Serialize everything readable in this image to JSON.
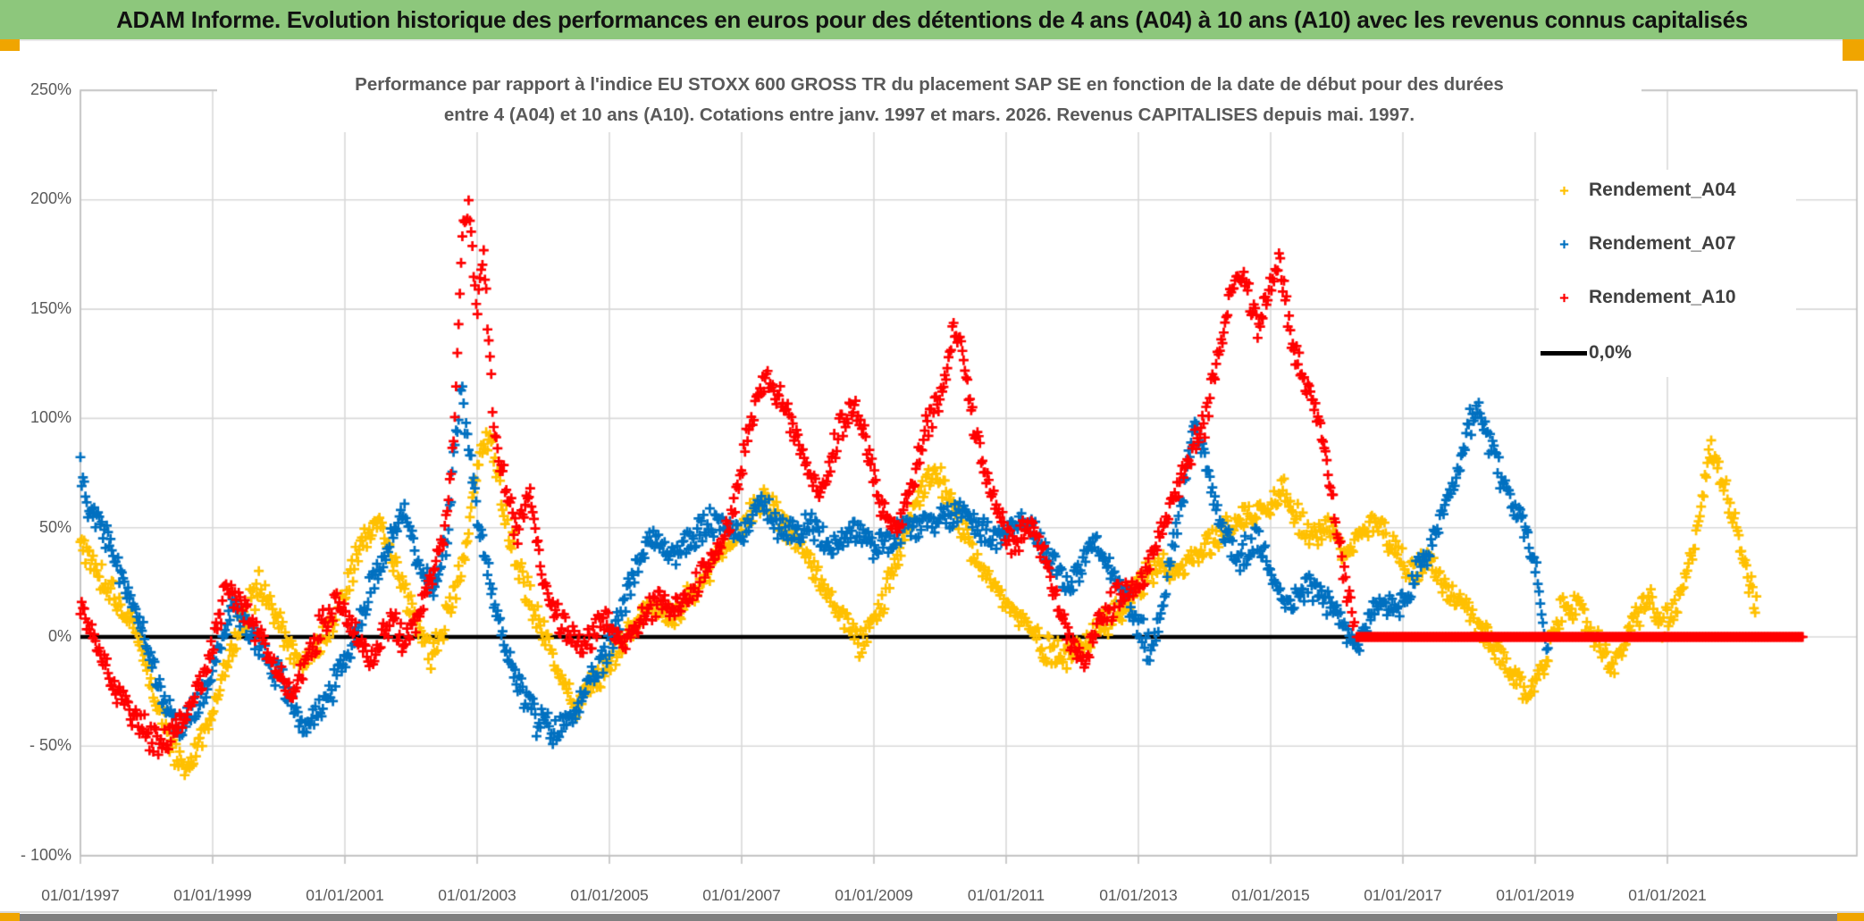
{
  "header": {
    "title": "ADAM Informe. Evolution historique des performances en euros pour des détentions de 4 ans (A04) à 10 ans (A10) avec les revenus connus capitalisés",
    "bg_color": "#8DC77C",
    "accent_color": "#F0A500"
  },
  "chart_data": {
    "type": "scatter",
    "title_line1": "Performance par rapport à l'indice EU STOXX 600 GROSS TR  du placement SAP SE en fonction de la date de début pour des durées",
    "title_line2": "entre 4 (A04) et 10 ans (A10). Cotations entre janv. 1997 et mars. 2026. Revenus CAPITALISES depuis mai. 1997.",
    "grid": true,
    "legend_position": "top-right",
    "x_axis": {
      "type": "date",
      "tick_labels": [
        "01/01/1997",
        "01/01/1999",
        "01/01/2001",
        "01/01/2003",
        "01/01/2005",
        "01/01/2007",
        "01/01/2009",
        "01/01/2011",
        "01/01/2013",
        "01/01/2015",
        "01/01/2017",
        "01/01/2019",
        "01/01/2021"
      ],
      "start_year": 1997,
      "end_year": 2023.9,
      "tick_step_years": 2
    },
    "y_axis": {
      "tick_labels": [
        "250%",
        "200%",
        "150%",
        "100%",
        "50%",
        "0%",
        "- 50%",
        "- 100%"
      ],
      "tick_values": [
        250,
        200,
        150,
        100,
        50,
        0,
        -50,
        -100
      ],
      "min": -100,
      "max": 250,
      "step": 50,
      "unit": "%"
    },
    "legend": [
      {
        "label": "Rendement_A04",
        "marker": "plus",
        "color": "#FFC000"
      },
      {
        "label": "Rendement_A07",
        "marker": "plus",
        "color": "#0070C0"
      },
      {
        "label": "Rendement_A10",
        "marker": "plus",
        "color": "#FF0000"
      },
      {
        "label": "0,0%",
        "marker": "line",
        "color": "#000000"
      }
    ],
    "zero_line": {
      "value": 0,
      "color": "#000000",
      "start_year": 1997.0,
      "end_year": 2023.05
    },
    "series": [
      {
        "name": "Rendement_A04",
        "color": "#FFC000",
        "marker": "plus",
        "seed": 11,
        "anchors": [
          [
            1997.0,
            42
          ],
          [
            1997.2,
            33
          ],
          [
            1997.5,
            20
          ],
          [
            1997.8,
            4
          ],
          [
            1998.0,
            -14
          ],
          [
            1998.3,
            -42
          ],
          [
            1998.55,
            -62
          ],
          [
            1998.7,
            -55
          ],
          [
            1999.0,
            -34
          ],
          [
            1999.2,
            -14
          ],
          [
            1999.45,
            6
          ],
          [
            1999.7,
            24
          ],
          [
            2000.0,
            6
          ],
          [
            2000.3,
            -14
          ],
          [
            2000.6,
            -4
          ],
          [
            2000.9,
            14
          ],
          [
            2001.2,
            38
          ],
          [
            2001.5,
            54
          ],
          [
            2001.8,
            30
          ],
          [
            2002.0,
            12
          ],
          [
            2002.3,
            -8
          ],
          [
            2002.6,
            14
          ],
          [
            2002.85,
            45
          ],
          [
            2003.05,
            85
          ],
          [
            2003.2,
            93
          ],
          [
            2003.4,
            60
          ],
          [
            2003.6,
            34
          ],
          [
            2003.9,
            10
          ],
          [
            2004.2,
            -14
          ],
          [
            2004.5,
            -31
          ],
          [
            2004.8,
            -20
          ],
          [
            2005.0,
            -10
          ],
          [
            2005.3,
            4
          ],
          [
            2005.6,
            14
          ],
          [
            2006.0,
            8
          ],
          [
            2006.3,
            20
          ],
          [
            2006.6,
            34
          ],
          [
            2007.0,
            50
          ],
          [
            2007.3,
            64
          ],
          [
            2007.6,
            54
          ],
          [
            2007.9,
            40
          ],
          [
            2008.2,
            25
          ],
          [
            2008.5,
            10
          ],
          [
            2008.8,
            -4
          ],
          [
            2009.0,
            6
          ],
          [
            2009.3,
            30
          ],
          [
            2009.6,
            58
          ],
          [
            2009.9,
            76
          ],
          [
            2010.2,
            60
          ],
          [
            2010.5,
            40
          ],
          [
            2010.8,
            25
          ],
          [
            2011.0,
            15
          ],
          [
            2011.3,
            5
          ],
          [
            2011.6,
            -5
          ],
          [
            2012.0,
            -8
          ],
          [
            2012.4,
            4
          ],
          [
            2012.8,
            15
          ],
          [
            2013.0,
            24
          ],
          [
            2013.3,
            34
          ],
          [
            2013.6,
            30
          ],
          [
            2014.0,
            40
          ],
          [
            2014.3,
            50
          ],
          [
            2014.6,
            55
          ],
          [
            2015.0,
            60
          ],
          [
            2015.2,
            70
          ],
          [
            2015.4,
            55
          ],
          [
            2015.6,
            46
          ],
          [
            2015.9,
            50
          ],
          [
            2016.1,
            36
          ],
          [
            2016.35,
            46
          ],
          [
            2016.6,
            54
          ],
          [
            2016.9,
            40
          ],
          [
            2017.1,
            30
          ],
          [
            2017.4,
            35
          ],
          [
            2017.7,
            20
          ],
          [
            2018.0,
            10
          ],
          [
            2018.3,
            -2
          ],
          [
            2018.6,
            -15
          ],
          [
            2018.9,
            -27
          ],
          [
            2019.1,
            -14
          ],
          [
            2019.3,
            4
          ],
          [
            2019.5,
            18
          ],
          [
            2019.8,
            5
          ],
          [
            2020.0,
            -5
          ],
          [
            2020.2,
            -14
          ],
          [
            2020.5,
            8
          ],
          [
            2020.7,
            18
          ],
          [
            2020.9,
            5
          ],
          [
            2021.1,
            10
          ],
          [
            2021.3,
            28
          ],
          [
            2021.5,
            58
          ],
          [
            2021.65,
            86
          ],
          [
            2021.8,
            74
          ],
          [
            2021.95,
            62
          ],
          [
            2022.1,
            44
          ],
          [
            2022.25,
            24
          ],
          [
            2022.35,
            12
          ]
        ]
      },
      {
        "name": "Rendement_A07",
        "color": "#0070C0",
        "marker": "plus",
        "seed": 23,
        "anchors": [
          [
            1997.0,
            78
          ],
          [
            1997.1,
            62
          ],
          [
            1997.3,
            50
          ],
          [
            1997.6,
            30
          ],
          [
            1997.9,
            6
          ],
          [
            1998.2,
            -24
          ],
          [
            1998.5,
            -43
          ],
          [
            1998.8,
            -30
          ],
          [
            1999.0,
            -14
          ],
          [
            1999.3,
            14
          ],
          [
            1999.6,
            2
          ],
          [
            2000.0,
            -18
          ],
          [
            2000.4,
            -42
          ],
          [
            2000.8,
            -24
          ],
          [
            2001.1,
            -4
          ],
          [
            2001.4,
            24
          ],
          [
            2001.7,
            45
          ],
          [
            2001.9,
            58
          ],
          [
            2002.1,
            35
          ],
          [
            2002.35,
            20
          ],
          [
            2002.55,
            45
          ],
          [
            2002.75,
            115
          ],
          [
            2002.85,
            90
          ],
          [
            2003.0,
            55
          ],
          [
            2003.3,
            10
          ],
          [
            2003.6,
            -20
          ],
          [
            2003.9,
            -38
          ],
          [
            2004.2,
            -44
          ],
          [
            2004.6,
            -28
          ],
          [
            2005.0,
            -5
          ],
          [
            2005.3,
            25
          ],
          [
            2005.6,
            45
          ],
          [
            2006.0,
            38
          ],
          [
            2006.5,
            52
          ],
          [
            2007.0,
            48
          ],
          [
            2007.3,
            62
          ],
          [
            2007.7,
            45
          ],
          [
            2008.0,
            55
          ],
          [
            2008.3,
            40
          ],
          [
            2008.7,
            50
          ],
          [
            2009.0,
            42
          ],
          [
            2009.5,
            50
          ],
          [
            2010.0,
            54
          ],
          [
            2010.4,
            58
          ],
          [
            2010.8,
            44
          ],
          [
            2011.0,
            50
          ],
          [
            2011.3,
            54
          ],
          [
            2011.6,
            40
          ],
          [
            2012.0,
            22
          ],
          [
            2012.3,
            44
          ],
          [
            2012.6,
            30
          ],
          [
            2013.0,
            6
          ],
          [
            2013.2,
            -8
          ],
          [
            2013.45,
            30
          ],
          [
            2013.7,
            70
          ],
          [
            2013.85,
            100
          ],
          [
            2014.0,
            82
          ],
          [
            2014.2,
            55
          ],
          [
            2014.5,
            35
          ],
          [
            2014.8,
            44
          ],
          [
            2015.0,
            30
          ],
          [
            2015.3,
            14
          ],
          [
            2015.6,
            25
          ],
          [
            2016.0,
            10
          ],
          [
            2016.3,
            -4
          ],
          [
            2016.6,
            14
          ],
          [
            2017.0,
            15
          ],
          [
            2017.3,
            34
          ],
          [
            2017.6,
            55
          ],
          [
            2017.85,
            75
          ],
          [
            2018.0,
            98
          ],
          [
            2018.15,
            103
          ],
          [
            2018.35,
            85
          ],
          [
            2018.6,
            65
          ],
          [
            2018.9,
            45
          ],
          [
            2019.0,
            34
          ],
          [
            2019.1,
            10
          ],
          [
            2019.2,
            -12
          ]
        ]
      },
      {
        "name": "Rendement_A10",
        "color": "#FF0000",
        "marker": "plus",
        "seed": 37,
        "anchors": [
          [
            1997.0,
            14
          ],
          [
            1997.3,
            -8
          ],
          [
            1997.6,
            -28
          ],
          [
            1997.9,
            -40
          ],
          [
            1998.2,
            -50
          ],
          [
            1998.6,
            -35
          ],
          [
            1998.9,
            -15
          ],
          [
            1999.2,
            22
          ],
          [
            1999.5,
            10
          ],
          [
            1999.8,
            -6
          ],
          [
            2000.2,
            -28
          ],
          [
            2000.6,
            2
          ],
          [
            2000.9,
            18
          ],
          [
            2001.1,
            5
          ],
          [
            2001.4,
            -12
          ],
          [
            2001.7,
            8
          ],
          [
            2001.9,
            -5
          ],
          [
            2002.1,
            10
          ],
          [
            2002.3,
            25
          ],
          [
            2002.5,
            45
          ],
          [
            2002.65,
            90
          ],
          [
            2002.78,
            185
          ],
          [
            2002.88,
            195
          ],
          [
            2003.0,
            150
          ],
          [
            2003.1,
            175
          ],
          [
            2003.25,
            95
          ],
          [
            2003.45,
            65
          ],
          [
            2003.6,
            45
          ],
          [
            2003.8,
            68
          ],
          [
            2004.0,
            22
          ],
          [
            2004.3,
            4
          ],
          [
            2004.6,
            -6
          ],
          [
            2004.9,
            10
          ],
          [
            2005.2,
            -4
          ],
          [
            2005.5,
            8
          ],
          [
            2005.8,
            16
          ],
          [
            2006.1,
            12
          ],
          [
            2006.4,
            28
          ],
          [
            2006.7,
            42
          ],
          [
            2006.9,
            62
          ],
          [
            2007.1,
            95
          ],
          [
            2007.35,
            118
          ],
          [
            2007.6,
            108
          ],
          [
            2007.8,
            92
          ],
          [
            2008.0,
            78
          ],
          [
            2008.2,
            62
          ],
          [
            2008.45,
            92
          ],
          [
            2008.7,
            105
          ],
          [
            2008.9,
            88
          ],
          [
            2009.1,
            60
          ],
          [
            2009.35,
            48
          ],
          [
            2009.6,
            72
          ],
          [
            2009.8,
            95
          ],
          [
            2010.0,
            108
          ],
          [
            2010.2,
            140
          ],
          [
            2010.35,
            128
          ],
          [
            2010.5,
            98
          ],
          [
            2010.7,
            72
          ],
          [
            2010.9,
            55
          ],
          [
            2011.1,
            42
          ],
          [
            2011.35,
            52
          ],
          [
            2011.6,
            35
          ],
          [
            2011.8,
            12
          ],
          [
            2012.0,
            -6
          ],
          [
            2012.2,
            -10
          ],
          [
            2012.45,
            8
          ],
          [
            2012.7,
            18
          ],
          [
            2013.0,
            22
          ],
          [
            2013.3,
            45
          ],
          [
            2013.6,
            68
          ],
          [
            2013.85,
            88
          ],
          [
            2014.0,
            95
          ],
          [
            2014.2,
            128
          ],
          [
            2014.4,
            158
          ],
          [
            2014.6,
            165
          ],
          [
            2014.8,
            140
          ],
          [
            2015.0,
            160
          ],
          [
            2015.15,
            172
          ],
          [
            2015.3,
            138
          ],
          [
            2015.5,
            118
          ],
          [
            2015.7,
            102
          ],
          [
            2015.85,
            80
          ],
          [
            2016.0,
            48
          ],
          [
            2016.15,
            20
          ],
          [
            2016.28,
            4
          ]
        ],
        "flat_zero_from": 2016.3,
        "flat_zero_to": 2023.05
      }
    ]
  }
}
